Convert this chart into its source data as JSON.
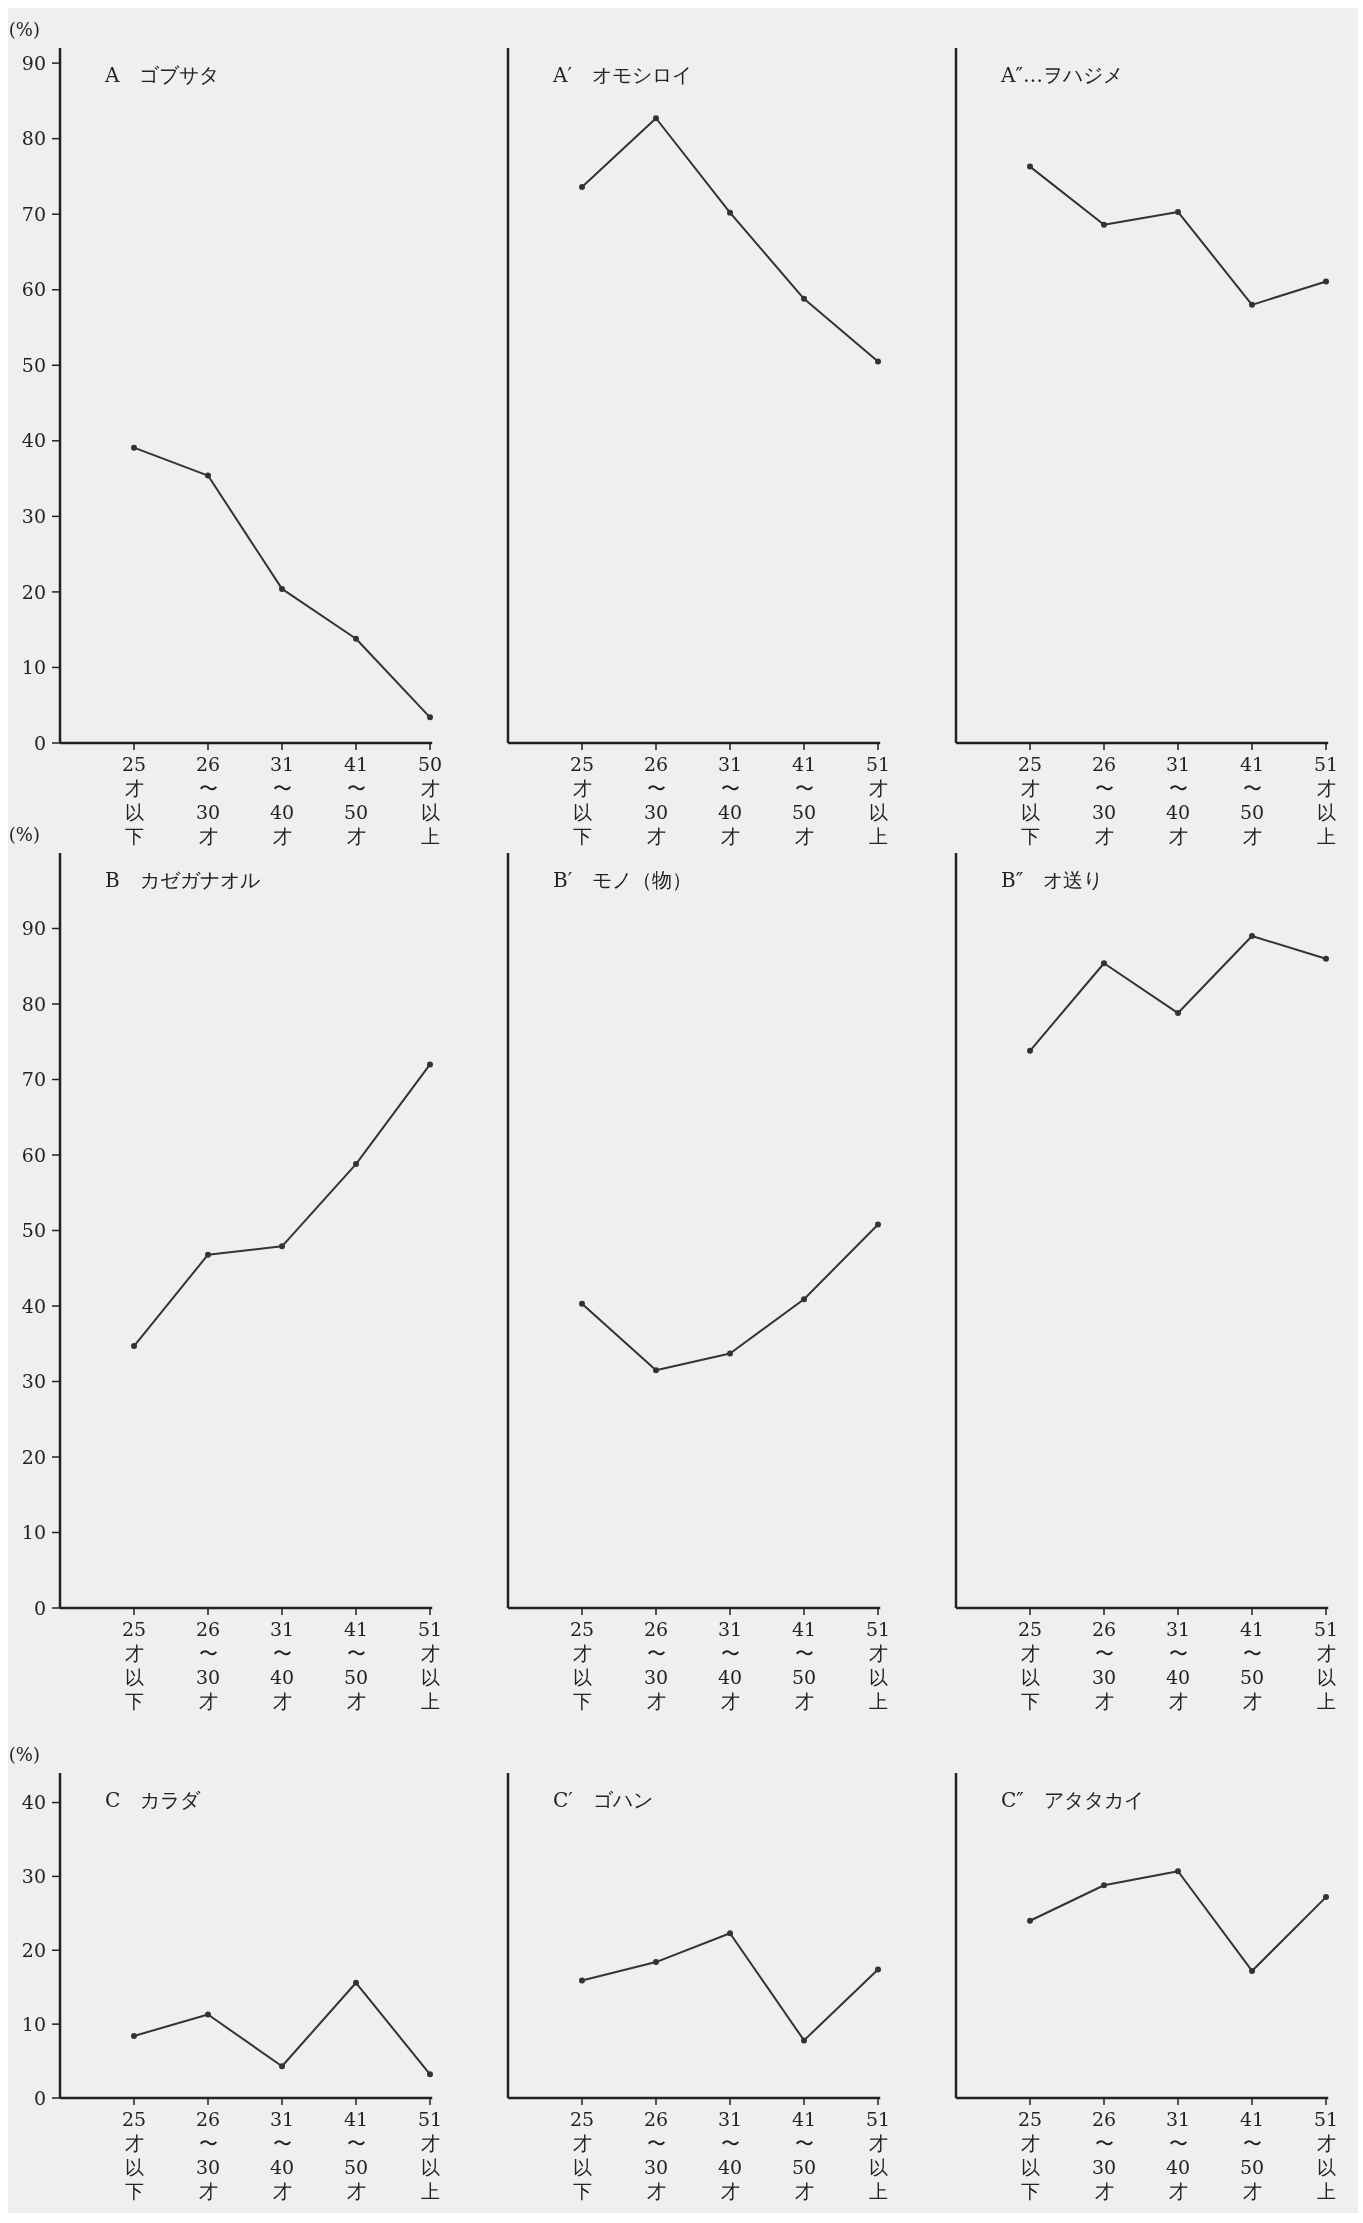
{
  "chart_data": [
    {
      "type": "line",
      "title": "A　ゴブサタ",
      "ylabel": "(%)",
      "categories": [
        "25才以下",
        "26〜30才",
        "31〜40才",
        "41〜50才",
        "50才以上"
      ],
      "series": [
        {
          "color": "#333333",
          "values": [
            39.1,
            35.4,
            20.4,
            13.8,
            3.4
          ]
        }
      ],
      "ylim": [
        0,
        92
      ],
      "yticks": [
        0,
        10,
        20,
        30,
        40,
        50,
        60,
        70,
        80,
        90
      ],
      "marker": "circle",
      "line_style": "solid"
    },
    {
      "type": "line",
      "title": "A′　オモシロイ",
      "categories": [
        "25才以下",
        "26〜30才",
        "31〜40才",
        "41〜50才",
        "51才以上"
      ],
      "series": [
        {
          "color": "#333333",
          "values": [
            73.6,
            82.7,
            70.2,
            58.8,
            50.5
          ]
        }
      ],
      "ylim": [
        0,
        92
      ],
      "tick_labels": "x",
      "marker": "circle",
      "line_style": "solid"
    },
    {
      "type": "line",
      "title": "A″…ヲハジメ",
      "categories": [
        "25才以下",
        "26〜30才",
        "31〜40才",
        "41〜50才",
        "51才以上"
      ],
      "series": [
        {
          "color": "#333333",
          "values": [
            76.3,
            68.6,
            70.3,
            58.0,
            61.1
          ]
        }
      ],
      "ylim": [
        0,
        92
      ],
      "tick_labels": "x",
      "marker": "circle",
      "line_style": "solid"
    },
    {
      "type": "line",
      "title": "B　カゼガナオル",
      "ylabel": "(%)",
      "categories": [
        "25才以下",
        "26〜30才",
        "31〜40才",
        "41〜50才",
        "51才以上"
      ],
      "series": [
        {
          "color": "#333333",
          "values": [
            34.7,
            46.8,
            47.9,
            58.8,
            72.0
          ]
        }
      ],
      "ylim": [
        0,
        100
      ],
      "yticks": [
        0,
        10,
        20,
        30,
        40,
        50,
        60,
        70,
        80,
        90
      ],
      "marker": "circle",
      "line_style": "solid"
    },
    {
      "type": "line",
      "title": "B′　モノ（物）",
      "categories": [
        "25才以下",
        "26〜30才",
        "31〜40才",
        "41〜50才",
        "51才以上"
      ],
      "series": [
        {
          "color": "#333333",
          "values": [
            40.3,
            31.5,
            33.7,
            40.9,
            50.8
          ]
        }
      ],
      "ylim": [
        0,
        100
      ],
      "tick_labels": "x",
      "marker": "circle",
      "line_style": "solid"
    },
    {
      "type": "line",
      "title": "B″　オ送り",
      "categories": [
        "25才以下",
        "26〜30才",
        "31〜40才",
        "41〜50才",
        "51才以上"
      ],
      "series": [
        {
          "color": "#333333",
          "values": [
            73.8,
            85.4,
            78.8,
            89.0,
            86.0
          ]
        }
      ],
      "ylim": [
        0,
        100
      ],
      "tick_labels": "x",
      "marker": "circle",
      "line_style": "solid"
    },
    {
      "type": "line",
      "title": "C　カラダ",
      "ylabel": "(%)",
      "categories": [
        "25才以下",
        "26〜30才",
        "31〜40才",
        "41〜50才",
        "51才以上"
      ],
      "series": [
        {
          "color": "#333333",
          "values": [
            8.4,
            11.3,
            4.3,
            15.6,
            3.2
          ]
        }
      ],
      "ylim": [
        0,
        44
      ],
      "yticks": [
        0,
        10,
        20,
        30,
        40
      ],
      "marker": "circle",
      "line_style": "solid"
    },
    {
      "type": "line",
      "title": "C′　ゴハン",
      "categories": [
        "25才以下",
        "26〜30才",
        "31〜40才",
        "41〜50才",
        "51才以上"
      ],
      "series": [
        {
          "color": "#333333",
          "values": [
            15.9,
            18.4,
            22.3,
            7.8,
            17.4
          ]
        }
      ],
      "ylim": [
        0,
        44
      ],
      "tick_labels": "x",
      "marker": "circle",
      "line_style": "solid"
    },
    {
      "type": "line",
      "title": "C″　アタタカイ",
      "categories": [
        "25才以下",
        "26〜30才",
        "31〜40才",
        "41〜50才",
        "51才以上"
      ],
      "series": [
        {
          "color": "#333333",
          "values": [
            24.0,
            28.8,
            30.7,
            17.2,
            27.2
          ]
        }
      ],
      "ylim": [
        0,
        44
      ],
      "tick_labels": "x",
      "marker": "circle",
      "line_style": "solid"
    }
  ]
}
